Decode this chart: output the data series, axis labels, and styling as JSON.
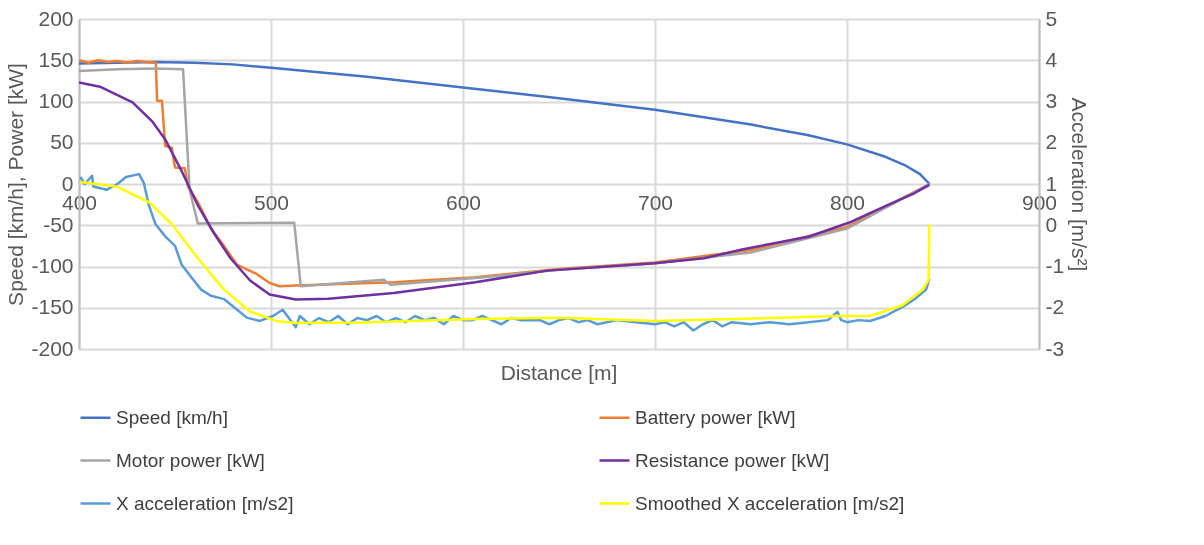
{
  "chart_data": {
    "type": "line",
    "xlabel": "Distance [m]",
    "ylabel": "Speed [km/h], Power [kW]",
    "y2label": "Acceleration [m/s²]",
    "xlim": [
      400,
      900
    ],
    "xticks": [
      400,
      500,
      600,
      700,
      800,
      900
    ],
    "ylim": [
      -200,
      200
    ],
    "yticks": [
      -200,
      -150,
      -100,
      -50,
      0,
      50,
      100,
      150,
      200
    ],
    "y2lim": [
      -3,
      5
    ],
    "y2ticks": [
      -3,
      -2,
      -1,
      0,
      1,
      2,
      3,
      4,
      5
    ],
    "grid": true,
    "legend": "bottom",
    "marker": "none",
    "line_style": "solid",
    "series": [
      {
        "name": "Speed [km/h]",
        "color": "#4472c4",
        "x": [
          400,
          420,
          440,
          460,
          480,
          500,
          550,
          600,
          650,
          700,
          750,
          780,
          800,
          820,
          830,
          838,
          843
        ],
        "values": [
          146,
          147,
          148,
          147,
          145,
          141,
          130,
          117,
          104,
          90,
          72,
          59,
          48,
          33,
          23,
          12,
          0
        ]
      },
      {
        "name": "Battery power [kW]",
        "color": "#ed7d31",
        "x": [
          400,
          405,
          410,
          415,
          420,
          425,
          430,
          435,
          440,
          440.7,
          443.2,
          444.9,
          448.3,
          450,
          455.1,
          456.8,
          461.9,
          468.7,
          475.5,
          482.3,
          492.5,
          499.3,
          504.4,
          512.9,
          563.9,
          606.5,
          650,
          700,
          750,
          800,
          843
        ],
        "values": [
          150,
          147,
          150,
          148,
          149,
          147,
          149,
          148,
          147,
          101,
          101,
          46,
          44,
          20,
          19,
          -3,
          -22,
          -54,
          -75,
          -98,
          -109,
          -120,
          -124,
          -123,
          -119,
          -113,
          -103,
          -95,
          -80,
          -52,
          0
        ]
      },
      {
        "name": "Motor power [kW]",
        "color": "#a5a5a5",
        "x": [
          400,
          420,
          440,
          454.2,
          457.6,
          461.9,
          512.1,
          515.5,
          558.8,
          562.2,
          606.5,
          650,
          700,
          750,
          800,
          843
        ],
        "values": [
          137,
          139,
          140,
          139,
          -7,
          -48,
          -47,
          -124,
          -116,
          -122,
          -114,
          -104,
          -96,
          -83,
          -54,
          0
        ]
      },
      {
        "name": "Resistance power [kW]",
        "color": "#7030a0",
        "x": [
          400,
          410.9,
          427.9,
          438.1,
          444.9,
          453.4,
          461.9,
          470.4,
          478.9,
          489.1,
          499.3,
          512.9,
          529.9,
          563.9,
          606.5,
          643.9,
          700,
          725.5,
          745.9,
          779.9,
          802,
          820.8,
          834.4,
          842.9
        ],
        "values": [
          123,
          118,
          99,
          76,
          54,
          16,
          -26,
          -60,
          -90,
          -117,
          -134,
          -140,
          -139,
          -132,
          -119,
          -105,
          -96,
          -90,
          -79,
          -64,
          -46,
          -26,
          -12,
          -1
        ]
      },
      {
        "name": "X acceleration [m/s2]",
        "color": "#5b9bd5",
        "axis": "y2",
        "x": [
          400.7,
          403,
          406.8,
          407.5,
          414.3,
          420,
          424.5,
          431.3,
          433.8,
          436.4,
          439.8,
          444.9,
          450,
          453.4,
          458.5,
          463.6,
          468.7,
          475.5,
          480.6,
          487.4,
          494.2,
          501,
          506.1,
          512.9,
          515,
          520,
          525,
          530,
          535,
          540,
          545,
          550,
          555,
          560,
          565,
          570,
          575,
          580,
          585,
          590,
          595,
          600,
          605,
          610,
          615,
          620,
          625,
          630,
          640,
          645,
          650,
          655,
          660,
          665,
          670,
          680,
          690,
          700,
          705,
          710,
          715,
          720,
          725,
          730,
          735,
          740,
          750,
          760,
          770,
          780,
          790,
          795,
          797,
          800,
          806,
          812,
          820,
          829,
          835,
          841.2,
          842.9
        ],
        "values": [
          1.17,
          1.0,
          1.2,
          0.94,
          0.86,
          1.0,
          1.17,
          1.24,
          1.02,
          0.48,
          0.03,
          -0.27,
          -0.5,
          -0.95,
          -1.26,
          -1.56,
          -1.71,
          -1.79,
          -1.98,
          -2.24,
          -2.32,
          -2.2,
          -2.05,
          -2.47,
          -2.2,
          -2.4,
          -2.25,
          -2.35,
          -2.2,
          -2.4,
          -2.25,
          -2.3,
          -2.2,
          -2.35,
          -2.25,
          -2.35,
          -2.2,
          -2.3,
          -2.25,
          -2.4,
          -2.2,
          -2.3,
          -2.3,
          -2.2,
          -2.3,
          -2.4,
          -2.25,
          -2.3,
          -2.3,
          -2.4,
          -2.3,
          -2.25,
          -2.35,
          -2.3,
          -2.4,
          -2.3,
          -2.35,
          -2.4,
          -2.35,
          -2.45,
          -2.35,
          -2.55,
          -2.4,
          -2.3,
          -2.45,
          -2.35,
          -2.4,
          -2.35,
          -2.4,
          -2.35,
          -2.3,
          -2.1,
          -2.3,
          -2.35,
          -2.3,
          -2.32,
          -2.2,
          -1.98,
          -1.8,
          -1.56,
          -1.3
        ]
      },
      {
        "name": "Smoothed X acceleration [m/s2]",
        "color": "#ffff00",
        "axis": "y2",
        "x": [
          400.7,
          419.4,
          436.4,
          448.3,
          461.9,
          475.5,
          489.1,
          502.7,
          512.9,
          547,
          606.5,
          650,
          700,
          735.7,
          795,
          812,
          829,
          839.4,
          842.5,
          842.9
        ],
        "values": [
          1.05,
          0.94,
          0.56,
          0.03,
          -0.8,
          -1.56,
          -2.09,
          -2.32,
          -2.37,
          -2.36,
          -2.27,
          -2.24,
          -2.32,
          -2.28,
          -2.2,
          -2.2,
          -1.94,
          -1.56,
          -1.33,
          0.03
        ]
      }
    ]
  }
}
